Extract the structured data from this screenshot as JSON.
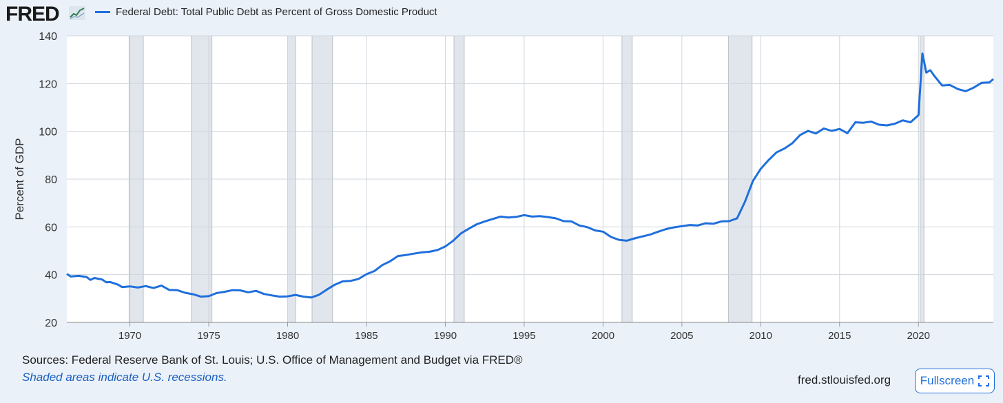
{
  "header": {
    "logo_text": "FRED",
    "series_label": "Federal Debt: Total Public Debt as Percent of Gross Domestic Product",
    "series_color": "#1f6fdc"
  },
  "footer": {
    "source": "Sources: Federal Reserve Bank of St. Louis; U.S. Office of Management and Budget via FRED®",
    "note": "Shaded areas indicate U.S. recessions.",
    "site": "fred.stlouisfed.org",
    "fullscreen_label": "Fullscreen",
    "fullscreen_icon": "expand-icon"
  },
  "chart_data": {
    "type": "line",
    "title": "Federal Debt: Total Public Debt as Percent of Gross Domestic Product",
    "xlabel": "",
    "ylabel": "Percent of GDP",
    "xlim": [
      1966.0,
      2024.75
    ],
    "ylim": [
      20,
      140
    ],
    "yticks": [
      20,
      40,
      60,
      80,
      100,
      120,
      140
    ],
    "xticks": [
      1970,
      1975,
      1980,
      1985,
      1990,
      1995,
      2000,
      2005,
      2010,
      2015,
      2020
    ],
    "grid": true,
    "recessions": [
      [
        1969.95,
        1970.85
      ],
      [
        1973.9,
        1975.2
      ],
      [
        1980.0,
        1980.5
      ],
      [
        1981.55,
        1982.85
      ],
      [
        1990.55,
        1991.2
      ],
      [
        2001.2,
        2001.85
      ],
      [
        2007.95,
        2009.45
      ],
      [
        2020.1,
        2020.35
      ]
    ],
    "series": [
      {
        "name": "Federal Debt: Total Public Debt as Percent of Gross Domestic Product",
        "x": [
          1966.0,
          1966.25,
          1966.75,
          1967.25,
          1967.5,
          1967.75,
          1968.25,
          1968.5,
          1968.75,
          1969.25,
          1969.5,
          1970.0,
          1970.5,
          1971.0,
          1971.5,
          1972.0,
          1972.5,
          1973.0,
          1973.5,
          1974.0,
          1974.5,
          1975.0,
          1975.5,
          1976.0,
          1976.5,
          1977.0,
          1977.5,
          1978.0,
          1978.5,
          1979.0,
          1979.5,
          1980.0,
          1980.5,
          1981.0,
          1981.5,
          1982.0,
          1982.5,
          1983.0,
          1983.5,
          1984.0,
          1984.5,
          1985.0,
          1985.5,
          1986.0,
          1986.5,
          1987.0,
          1987.5,
          1988.0,
          1988.5,
          1989.0,
          1989.5,
          1990.0,
          1990.5,
          1991.0,
          1991.5,
          1992.0,
          1992.5,
          1993.0,
          1993.5,
          1994.0,
          1994.5,
          1995.0,
          1995.5,
          1996.0,
          1996.5,
          1997.0,
          1997.5,
          1998.0,
          1998.5,
          1999.0,
          1999.5,
          2000.0,
          2000.5,
          2001.0,
          2001.5,
          2002.0,
          2002.5,
          2003.0,
          2003.5,
          2004.0,
          2004.5,
          2005.0,
          2005.5,
          2006.0,
          2006.5,
          2007.0,
          2007.5,
          2008.0,
          2008.5,
          2009.0,
          2009.5,
          2010.0,
          2010.5,
          2011.0,
          2011.5,
          2012.0,
          2012.5,
          2013.0,
          2013.5,
          2014.0,
          2014.5,
          2015.0,
          2015.5,
          2016.0,
          2016.5,
          2017.0,
          2017.5,
          2018.0,
          2018.5,
          2019.0,
          2019.5,
          2020.0,
          2020.25,
          2020.5,
          2020.75,
          2021.0,
          2021.5,
          2022.0,
          2022.5,
          2023.0,
          2023.5,
          2024.0,
          2024.5,
          2024.75
        ],
        "values": [
          40.3,
          39.2,
          39.5,
          39.0,
          37.8,
          38.6,
          37.9,
          36.8,
          36.9,
          35.8,
          34.8,
          35.1,
          34.6,
          35.2,
          34.4,
          35.4,
          33.6,
          33.5,
          32.4,
          31.8,
          30.8,
          31.0,
          32.3,
          32.8,
          33.5,
          33.4,
          32.6,
          33.2,
          31.9,
          31.3,
          30.8,
          30.9,
          31.5,
          30.8,
          30.4,
          31.6,
          33.8,
          35.8,
          37.2,
          37.4,
          38.2,
          40.2,
          41.5,
          44.0,
          45.6,
          47.8,
          48.2,
          48.8,
          49.3,
          49.6,
          50.3,
          51.8,
          54.2,
          57.3,
          59.3,
          61.1,
          62.3,
          63.3,
          64.3,
          63.9,
          64.2,
          64.9,
          64.3,
          64.5,
          64.1,
          63.6,
          62.4,
          62.3,
          60.6,
          59.9,
          58.5,
          58.0,
          55.8,
          54.6,
          54.2,
          55.2,
          56.0,
          56.8,
          58.0,
          59.1,
          59.8,
          60.3,
          60.8,
          60.6,
          61.5,
          61.3,
          62.3,
          62.4,
          63.6,
          70.5,
          79.2,
          84.3,
          88.0,
          91.2,
          92.8,
          95.0,
          98.5,
          100.2,
          99.1,
          101.2,
          100.2,
          101.0,
          99.2,
          103.8,
          103.6,
          104.1,
          102.8,
          102.5,
          103.2,
          104.6,
          103.8,
          106.8,
          132.6,
          124.6,
          125.6,
          123.3,
          119.2,
          119.4,
          117.7,
          116.8,
          118.3,
          120.3,
          120.5,
          121.9
        ]
      }
    ]
  }
}
